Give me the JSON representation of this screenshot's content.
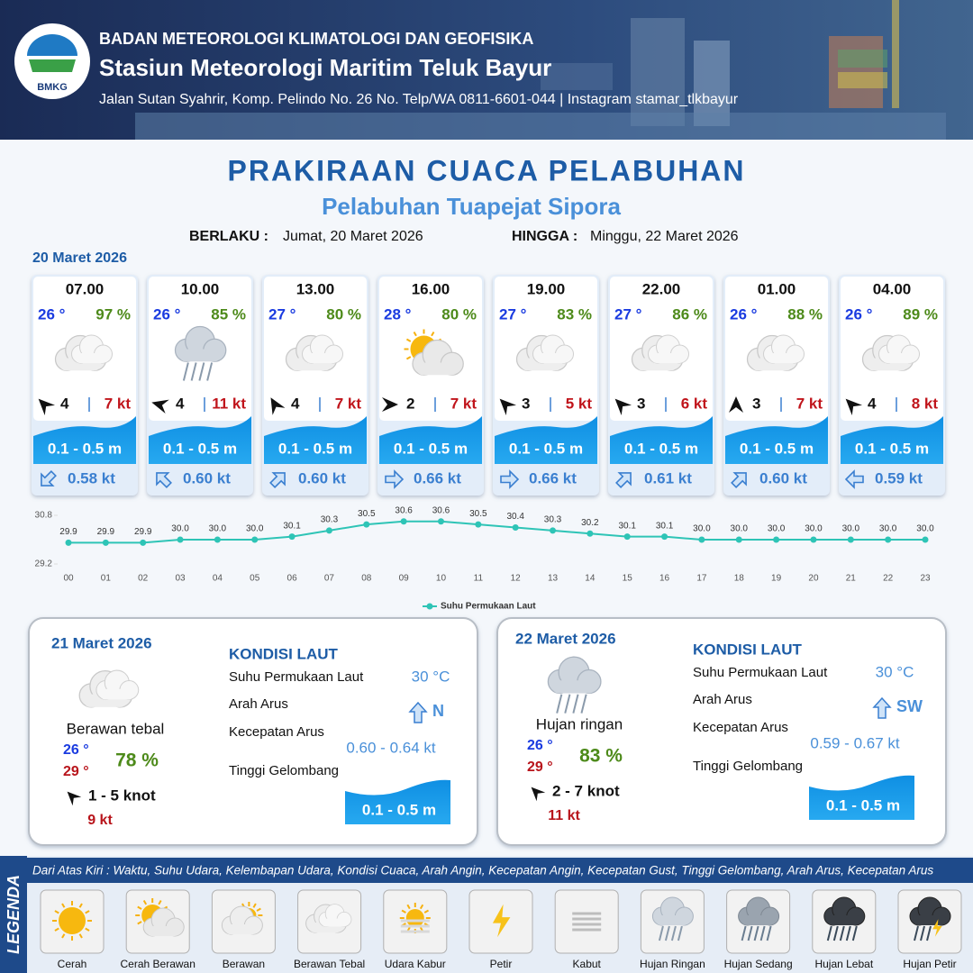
{
  "header": {
    "logo_text": "BMKG",
    "agency": "BADAN METEOROLOGI KLIMATOLOGI DAN GEOFISIKA",
    "station": "Stasiun Meteorologi Maritim Teluk Bayur",
    "address": "Jalan Sutan Syahrir, Komp. Pelindo No. 26 No. Telp/WA 0811-6601-044 | Instagram stamar_tlkbayur"
  },
  "title": "PRAKIRAAN CUACA PELABUHAN",
  "subtitle": "Pelabuhan Tuapejat Sipora",
  "validity": {
    "from_label": "BERLAKU :",
    "from": "Jumat, 20 Maret 2026",
    "to_label": "HINGGA :",
    "to": "Minggu, 22 Maret 2026"
  },
  "today": {
    "date": "20 Maret 2026",
    "forecasts": [
      {
        "time": "07.00",
        "temp": "26 °",
        "humidity": "97 %",
        "condition": "Berawan Tebal",
        "wind_dir": 315,
        "wind_speed": "4",
        "gust": "7 kt",
        "wave": "0.1 - 0.5 m",
        "current_dir": 225,
        "current_speed": "0.58 kt"
      },
      {
        "time": "10.00",
        "temp": "26 °",
        "humidity": "85 %",
        "condition": "Hujan Ringan",
        "wind_dir": 285,
        "wind_speed": "4",
        "gust": "11 kt",
        "wave": "0.1 - 0.5 m",
        "current_dir": 315,
        "current_speed": "0.60 kt"
      },
      {
        "time": "13.00",
        "temp": "27 °",
        "humidity": "80 %",
        "condition": "Berawan Tebal",
        "wind_dir": 330,
        "wind_speed": "4",
        "gust": "7 kt",
        "wave": "0.1 - 0.5 m",
        "current_dir": 45,
        "current_speed": "0.60 kt"
      },
      {
        "time": "16.00",
        "temp": "28 °",
        "humidity": "80 %",
        "condition": "Cerah Berawan",
        "wind_dir": 90,
        "wind_speed": "2",
        "gust": "7 kt",
        "wave": "0.1 - 0.5 m",
        "current_dir": 90,
        "current_speed": "0.66 kt"
      },
      {
        "time": "19.00",
        "temp": "27 °",
        "humidity": "83 %",
        "condition": "Berawan Tebal",
        "wind_dir": 315,
        "wind_speed": "3",
        "gust": "5 kt",
        "wave": "0.1 - 0.5 m",
        "current_dir": 90,
        "current_speed": "0.66 kt"
      },
      {
        "time": "22.00",
        "temp": "27 °",
        "humidity": "86 %",
        "condition": "Berawan Tebal",
        "wind_dir": 315,
        "wind_speed": "3",
        "gust": "6 kt",
        "wave": "0.1 - 0.5 m",
        "current_dir": 45,
        "current_speed": "0.61 kt"
      },
      {
        "time": "01.00",
        "temp": "26 °",
        "humidity": "88 %",
        "condition": "Berawan Tebal",
        "wind_dir": 0,
        "wind_speed": "3",
        "gust": "7 kt",
        "wave": "0.1 - 0.5 m",
        "current_dir": 45,
        "current_speed": "0.60 kt"
      },
      {
        "time": "04.00",
        "temp": "26 °",
        "humidity": "89 %",
        "condition": "Berawan Tebal",
        "wind_dir": 315,
        "wind_speed": "4",
        "gust": "8 kt",
        "wave": "0.1 - 0.5 m",
        "current_dir": 270,
        "current_speed": "0.59 kt"
      }
    ]
  },
  "chart_data": {
    "type": "line",
    "categories": [
      "00",
      "01",
      "02",
      "03",
      "04",
      "05",
      "06",
      "07",
      "08",
      "09",
      "10",
      "11",
      "12",
      "13",
      "14",
      "15",
      "16",
      "17",
      "18",
      "19",
      "20",
      "21",
      "22",
      "23"
    ],
    "series": [
      {
        "name": "Suhu Permukaan Laut",
        "color": "#2ec4b6",
        "values": [
          29.9,
          29.9,
          29.9,
          30.0,
          30.0,
          30.0,
          30.1,
          30.3,
          30.5,
          30.6,
          30.6,
          30.5,
          30.4,
          30.3,
          30.2,
          30.1,
          30.1,
          30.0,
          30.0,
          30.0,
          30.0,
          30.0,
          30.0,
          30.0
        ],
        "value_labels": [
          "29.9",
          "29.9",
          "29.9",
          "30.0",
          "30.0",
          "30.0",
          "30.1",
          "30.3",
          "30.5",
          "30.6",
          "30.6",
          "30.5",
          "30.4",
          "30.3",
          "30.2",
          "30.1",
          "30.1",
          "30.0",
          "30.0",
          "30.0",
          "30.0",
          "30.0",
          "30.0",
          "30.0"
        ]
      }
    ],
    "ylim": [
      29.2,
      30.8
    ],
    "yticks": [
      29.2,
      30.8
    ]
  },
  "days": [
    {
      "date": "21 Maret 2026",
      "condition": "Berawan tebal",
      "icon": "Berawan Tebal",
      "temp_min": "26 °",
      "temp_max": "29 °",
      "humidity": "78 %",
      "wind_dir": 315,
      "wind": "1 - 5 knot",
      "gust": "9 kt",
      "sea": {
        "title": "KONDISI LAUT",
        "sst_label": "Suhu Permukaan Laut",
        "sst": "30 °C",
        "current_dir_label": "Arah Arus",
        "current_dir": "N",
        "current_arrow": 0,
        "current_speed_label": "Kecepatan Arus",
        "current_speed": "0.60 - 0.64 kt",
        "wave_label": "Tinggi Gelombang",
        "wave": "0.1 - 0.5 m"
      }
    },
    {
      "date": "22 Maret 2026",
      "condition": "Hujan ringan",
      "icon": "Hujan Ringan",
      "temp_min": "26 °",
      "temp_max": "29 °",
      "humidity": "83 %",
      "wind_dir": 315,
      "wind": "2 - 7 knot",
      "gust": "11 kt",
      "sea": {
        "title": "KONDISI LAUT",
        "sst_label": "Suhu Permukaan Laut",
        "sst": "30 °C",
        "current_dir_label": "Arah Arus",
        "current_dir": "SW",
        "current_arrow": 0,
        "current_speed_label": "Kecepatan Arus",
        "current_speed": "0.59 - 0.67 kt",
        "wave_label": "Tinggi Gelombang",
        "wave": "0.1 - 0.5 m"
      }
    }
  ],
  "legend": {
    "title": "LEGENDA",
    "description": "Dari Atas Kiri : Waktu, Suhu Udara, Kelembapan Udara, Kondisi Cuaca, Arah Angin, Kecepatan Angin, Kecepatan Gust, Tinggi Gelombang, Arah Arus, Kecepatan Arus",
    "items": [
      "Cerah",
      "Cerah Berawan",
      "Berawan",
      "Berawan Tebal",
      "Udara Kabur",
      "Petir",
      "Kabut",
      "Hujan Ringan",
      "Hujan Sedang",
      "Hujan Lebat",
      "Hujan Petir"
    ]
  }
}
